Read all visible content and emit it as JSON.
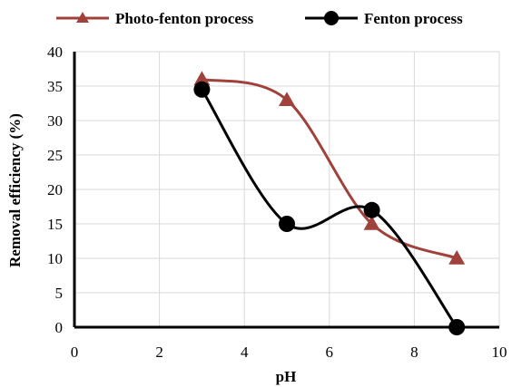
{
  "chart_data": {
    "type": "line",
    "xlabel": "pH",
    "ylabel": "Removal efficiency (%)",
    "xlim": [
      0,
      10
    ],
    "ylim": [
      0,
      40
    ],
    "xticks": [
      0,
      2,
      4,
      6,
      8,
      10
    ],
    "yticks": [
      0,
      5,
      10,
      15,
      20,
      25,
      30,
      35,
      40
    ],
    "grid": true,
    "smooth": true,
    "legend_position": "top",
    "series": [
      {
        "name": "Photo-fenton process",
        "color": "#a0413c",
        "marker": "triangle",
        "x": [
          3,
          5,
          7,
          9
        ],
        "y": [
          36,
          33,
          15,
          10
        ]
      },
      {
        "name": "Fenton process",
        "color": "#000000",
        "marker": "circle",
        "x": [
          3,
          5,
          7,
          9
        ],
        "y": [
          34.5,
          15,
          17,
          0
        ]
      }
    ]
  }
}
